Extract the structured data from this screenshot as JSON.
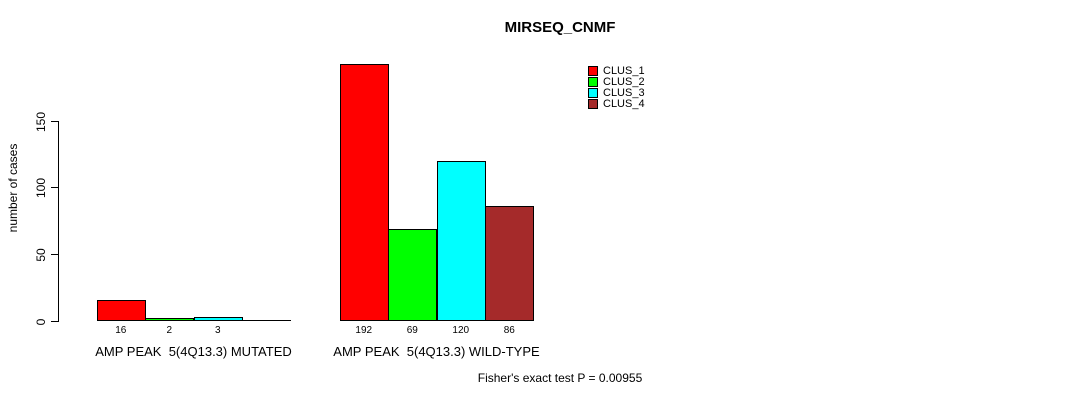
{
  "chart_data": {
    "type": "bar",
    "title": "MIRSEQ_CNMF",
    "ylabel": "number of cases",
    "xlabel": "",
    "yticks": [
      0,
      50,
      100,
      150
    ],
    "ylim": [
      0,
      200
    ],
    "grid": false,
    "legend_position": "top-right",
    "categories": [
      "AMP PEAK  5(4Q13.3) MUTATED",
      "AMP PEAK  5(4Q13.3) WILD-TYPE"
    ],
    "series": [
      {
        "name": "CLUS_1",
        "color": "#FF0000",
        "values": [
          16,
          192
        ]
      },
      {
        "name": "CLUS_2",
        "color": "#00FF00",
        "values": [
          2,
          69
        ]
      },
      {
        "name": "CLUS_3",
        "color": "#00FFFF",
        "values": [
          3,
          120
        ]
      },
      {
        "name": "CLUS_4",
        "color": "#A52A2A",
        "values": [
          0,
          86
        ]
      }
    ],
    "bar_value_labels": [
      [
        "16",
        "2",
        "3",
        ""
      ],
      [
        "192",
        "69",
        "120",
        "86"
      ]
    ],
    "annotation": "Fisher's exact test P = 0.00955",
    "axis_color": "#000000",
    "background_color": "#FFFFFF"
  }
}
